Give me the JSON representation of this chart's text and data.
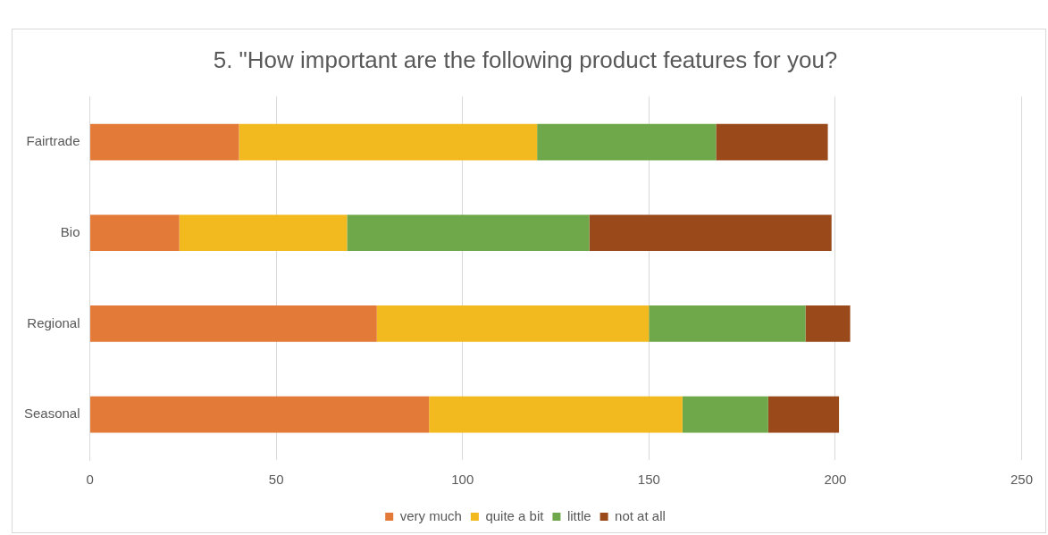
{
  "chart_data": {
    "type": "bar",
    "orientation": "horizontal",
    "stacked": true,
    "title": "5. \"How important are the following product features for you?",
    "categories": [
      "Fairtrade",
      "Bio",
      "Regional",
      "Seasonal"
    ],
    "series": [
      {
        "name": "very much",
        "color": "#e47a38",
        "values": [
          40,
          24,
          77,
          91
        ]
      },
      {
        "name": "quite a bit",
        "color": "#f3ba1f",
        "values": [
          80,
          45,
          73,
          68
        ]
      },
      {
        "name": "little",
        "color": "#6fa84a",
        "values": [
          48,
          65,
          42,
          23
        ]
      },
      {
        "name": "not at all",
        "color": "#99491a",
        "values": [
          30,
          65,
          12,
          19
        ]
      }
    ],
    "xlim": [
      0,
      250
    ],
    "xticks": [
      0,
      50,
      100,
      150,
      200,
      250
    ],
    "grid": "x",
    "legend": "bottom"
  }
}
